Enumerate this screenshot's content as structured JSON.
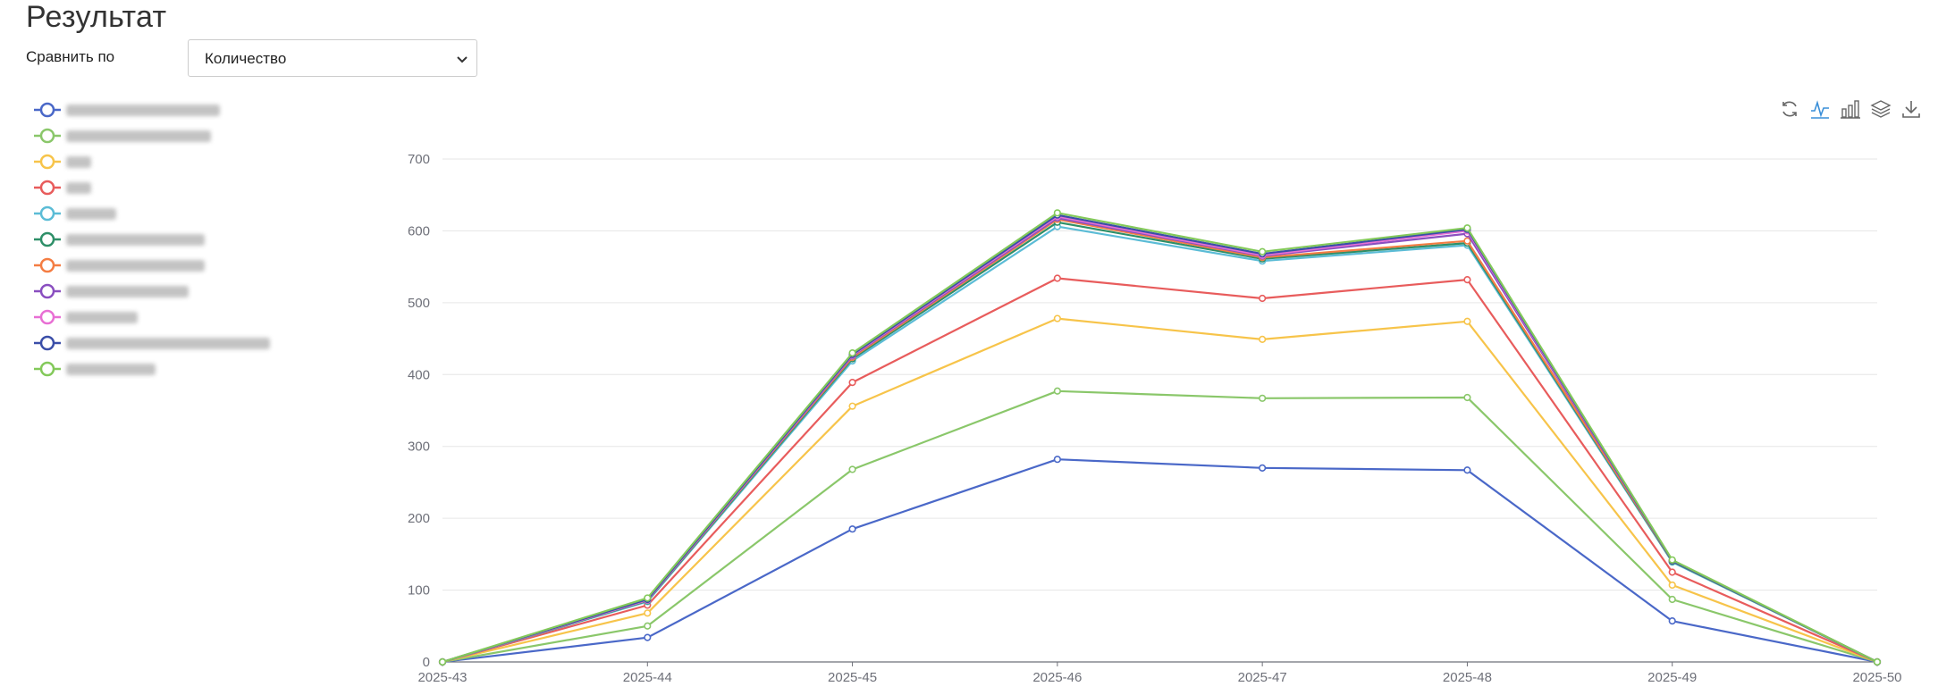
{
  "page": {
    "title": "Результат"
  },
  "filter": {
    "compare_label": "Сравнить по",
    "selected": "Количество"
  },
  "legend": {
    "items": [
      {
        "color": "#4a68c8"
      },
      {
        "color": "#8ac76a"
      },
      {
        "color": "#f7c44a"
      },
      {
        "color": "#e85c5c"
      },
      {
        "color": "#5bbcd6"
      },
      {
        "color": "#2e8f68"
      },
      {
        "color": "#f47d43"
      },
      {
        "color": "#8a4fc0"
      },
      {
        "color": "#e86fd4"
      },
      {
        "color": "#3a4ea8"
      },
      {
        "color": "#83c95a"
      }
    ]
  },
  "toolbox": {
    "icons": [
      "refresh-icon",
      "line-chart-icon",
      "bar-chart-icon",
      "stack-icon",
      "download-icon"
    ]
  },
  "chart_data": {
    "type": "line",
    "stacked": true,
    "categories": [
      "2025-43",
      "2025-44",
      "2025-45",
      "2025-46",
      "2025-47",
      "2025-48",
      "2025-49",
      "2025-50"
    ],
    "ylim": [
      0,
      700
    ],
    "yticks": [
      0,
      100,
      200,
      300,
      400,
      500,
      600,
      700
    ],
    "grid": true,
    "legend_position": "left",
    "series": [
      {
        "color": "#4a68c8",
        "values": [
          0,
          34,
          185,
          282,
          270,
          267,
          57,
          0
        ]
      },
      {
        "color": "#8ac76a",
        "values": [
          0,
          16,
          83,
          95,
          97,
          101,
          30,
          0
        ]
      },
      {
        "color": "#f7c44a",
        "values": [
          0,
          18,
          88,
          101,
          82,
          106,
          20,
          0
        ]
      },
      {
        "color": "#e85c5c",
        "values": [
          0,
          11,
          33,
          56,
          57,
          58,
          18,
          0
        ]
      },
      {
        "color": "#5bbcd6",
        "values": [
          0,
          5,
          30,
          72,
          52,
          48,
          14,
          0
        ]
      },
      {
        "color": "#2e8f68",
        "values": [
          0,
          1,
          3,
          6,
          3,
          3,
          1,
          0
        ]
      },
      {
        "color": "#f47d43",
        "values": [
          0,
          1,
          2,
          4,
          2,
          3,
          1,
          0
        ]
      },
      {
        "color": "#8a4fc0",
        "values": [
          0,
          0,
          2,
          2,
          2,
          10,
          0,
          0
        ]
      },
      {
        "color": "#e86fd4",
        "values": [
          0,
          0,
          1,
          2,
          1,
          4,
          0,
          0
        ]
      },
      {
        "color": "#3a4ea8",
        "values": [
          0,
          1,
          1,
          2,
          2,
          2,
          0,
          0
        ]
      },
      {
        "color": "#83c95a",
        "values": [
          0,
          2,
          2,
          3,
          3,
          2,
          1,
          0
        ]
      }
    ]
  }
}
